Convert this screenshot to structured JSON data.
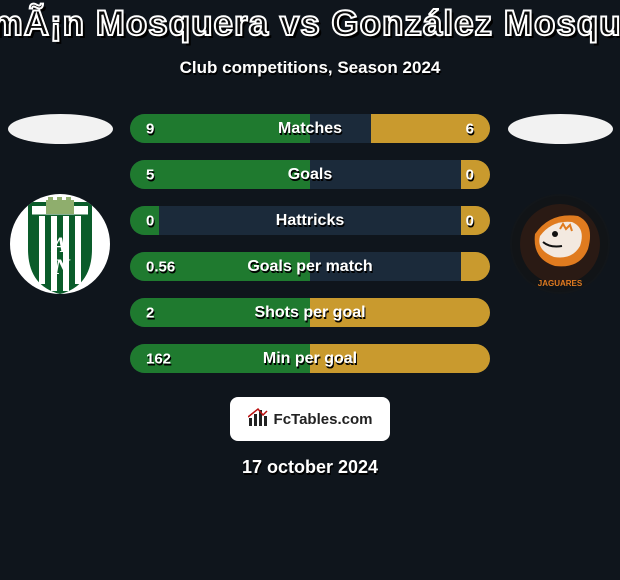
{
  "colors": {
    "page_bg": "#0f151c",
    "title_fill": "#0b0b0b",
    "title_outline": "#ffffff",
    "subtitle": "#ffffff",
    "back_bar": "#1b2a3a",
    "left_bar": "#1f7a2f",
    "right_bar": "#c99a2e",
    "fctables_bg": "#ffffff",
    "fctables_text": "#222222",
    "date": "#ffffff",
    "ellipse_left": "#f2f2f2",
    "ellipse_right": "#f2f2f2",
    "crest_left_bg": "#ffffff",
    "crest_right_bg": "#12161a"
  },
  "title": "RomÃ¡n Mosquera vs González Mosquera",
  "subtitle": "Club competitions, Season 2024",
  "stats": [
    {
      "label": "Matches",
      "left_val": "9",
      "right_val": "6",
      "left_w": 50,
      "right_w": 33
    },
    {
      "label": "Goals",
      "left_val": "5",
      "right_val": "0",
      "left_w": 50,
      "right_w": 8
    },
    {
      "label": "Hattricks",
      "left_val": "0",
      "right_val": "0",
      "left_w": 8,
      "right_w": 8
    },
    {
      "label": "Goals per match",
      "left_val": "0.56",
      "right_val": "",
      "left_w": 50,
      "right_w": 8
    },
    {
      "label": "Shots per goal",
      "left_val": "2",
      "right_val": "",
      "left_w": 50,
      "right_w": 50
    },
    {
      "label": "Min per goal",
      "left_val": "162",
      "right_val": "",
      "left_w": 50,
      "right_w": 50
    }
  ],
  "fctables_label": "FcTables.com",
  "date": "17 october 2024",
  "crest_left_label": "AN",
  "crest_right_label": "JAGUARES"
}
